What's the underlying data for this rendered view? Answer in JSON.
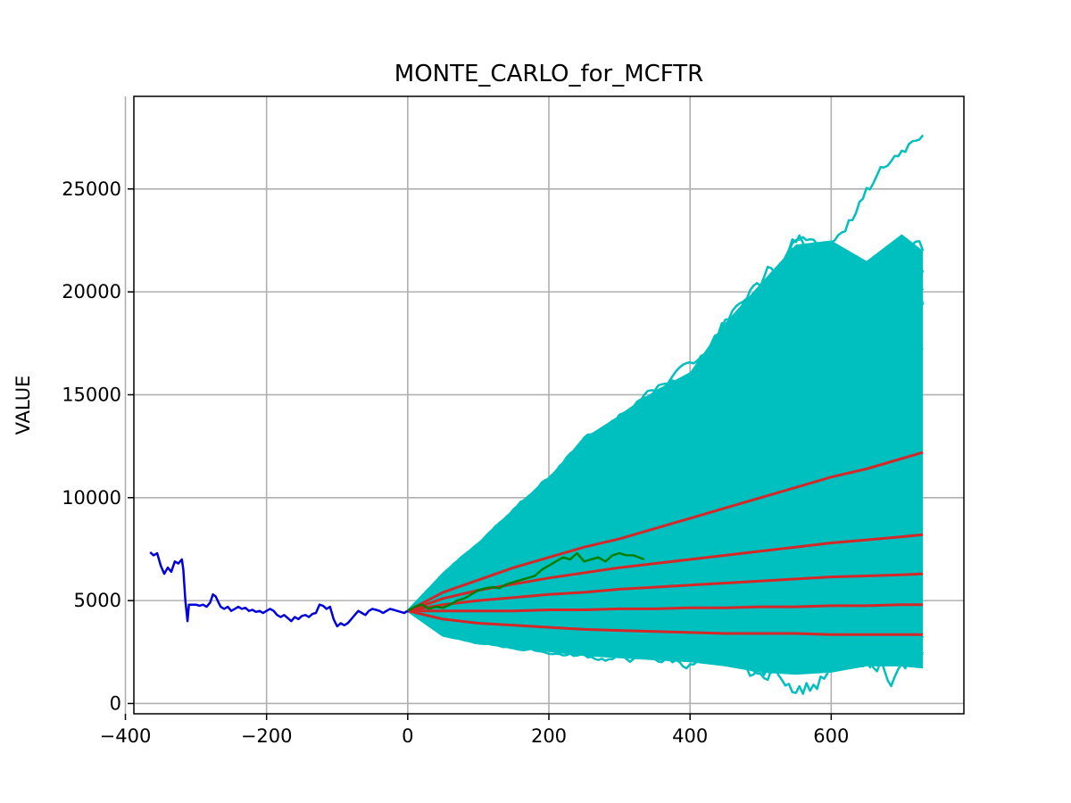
{
  "chart_data": {
    "type": "line",
    "title": "MONTE_CARLO_for_MCFTR",
    "xlabel": "",
    "ylabel": "VALUE",
    "xlim": [
      -388,
      788
    ],
    "ylim": [
      -500,
      29500
    ],
    "grid": true,
    "x_ticks": [
      -400,
      -200,
      0,
      200,
      400,
      600
    ],
    "y_ticks": [
      0,
      5000,
      10000,
      15000,
      20000,
      25000
    ],
    "colors": {
      "history": "#0000dd",
      "simulations": "#00bfbf",
      "percentiles": "#d62728",
      "realized": "#008000"
    },
    "series": [
      {
        "role": "history",
        "x": [
          -365,
          -360,
          -355,
          -350,
          -345,
          -340,
          -335,
          -330,
          -325,
          -320,
          -318,
          -315,
          -312,
          -310,
          -305,
          -300,
          -295,
          -290,
          -285,
          -280,
          -276,
          -272,
          -268,
          -265,
          -260,
          -255,
          -250,
          -245,
          -240,
          -235,
          -230,
          -225,
          -220,
          -215,
          -210,
          -205,
          -200,
          -195,
          -190,
          -185,
          -180,
          -175,
          -170,
          -165,
          -160,
          -155,
          -150,
          -145,
          -140,
          -135,
          -130,
          -125,
          -120,
          -115,
          -110,
          -105,
          -100,
          -95,
          -90,
          -85,
          -80,
          -75,
          -70,
          -65,
          -60,
          -55,
          -50,
          -45,
          -40,
          -35,
          -30,
          -25,
          -20,
          -15,
          -10,
          -5,
          0
        ],
        "values": [
          7350,
          7200,
          7300,
          6700,
          6300,
          6600,
          6400,
          6900,
          6800,
          7000,
          6500,
          5000,
          4000,
          4800,
          4800,
          4800,
          4750,
          4800,
          4700,
          4900,
          5300,
          5200,
          4900,
          4700,
          4600,
          4700,
          4500,
          4600,
          4700,
          4600,
          4650,
          4500,
          4550,
          4450,
          4500,
          4400,
          4500,
          4600,
          4500,
          4300,
          4200,
          4300,
          4150,
          4000,
          4200,
          4100,
          4250,
          4300,
          4200,
          4350,
          4400,
          4800,
          4750,
          4600,
          4700,
          4100,
          3750,
          3900,
          3800,
          3900,
          4100,
          4300,
          4500,
          4400,
          4300,
          4500,
          4600,
          4550,
          4500,
          4400,
          4500,
          4600,
          4550,
          4500,
          4450,
          4400,
          4500
        ]
      },
      {
        "role": "simulation-upper-envelope",
        "x": [
          0,
          50,
          100,
          150,
          200,
          250,
          300,
          350,
          400,
          450,
          500,
          550,
          600,
          650,
          700,
          730
        ],
        "values": [
          4500,
          6300,
          7800,
          9400,
          11000,
          12900,
          14000,
          15200,
          16100,
          18500,
          20400,
          22300,
          22500,
          21500,
          22800,
          22000
        ]
      },
      {
        "role": "simulation-lower-envelope",
        "x": [
          0,
          50,
          100,
          150,
          200,
          250,
          300,
          350,
          400,
          450,
          500,
          550,
          600,
          650,
          700,
          730
        ],
        "values": [
          4500,
          3300,
          2900,
          2700,
          2500,
          2300,
          2200,
          2100,
          2000,
          1800,
          1500,
          1400,
          1500,
          1800,
          1800,
          1700
        ]
      },
      {
        "role": "percentile",
        "x": [
          0,
          50,
          100,
          150,
          200,
          250,
          300,
          350,
          400,
          450,
          500,
          550,
          600,
          650,
          700,
          730
        ],
        "values": [
          4500,
          5400,
          6000,
          6600,
          7100,
          7600,
          8000,
          8500,
          9000,
          9500,
          10000,
          10500,
          11000,
          11400,
          11900,
          12200
        ]
      },
      {
        "role": "percentile",
        "x": [
          0,
          50,
          100,
          150,
          200,
          250,
          300,
          350,
          400,
          450,
          500,
          550,
          600,
          650,
          700,
          730
        ],
        "values": [
          4500,
          5100,
          5500,
          5800,
          6100,
          6350,
          6600,
          6800,
          7000,
          7200,
          7400,
          7600,
          7800,
          7950,
          8100,
          8200
        ]
      },
      {
        "role": "percentile",
        "x": [
          0,
          50,
          100,
          150,
          200,
          250,
          300,
          350,
          400,
          450,
          500,
          550,
          600,
          650,
          700,
          730
        ],
        "values": [
          4500,
          4800,
          5000,
          5150,
          5300,
          5400,
          5550,
          5650,
          5750,
          5850,
          5950,
          6050,
          6150,
          6200,
          6250,
          6300
        ]
      },
      {
        "role": "percentile",
        "x": [
          0,
          50,
          100,
          150,
          200,
          250,
          300,
          350,
          400,
          450,
          500,
          550,
          600,
          650,
          700,
          730
        ],
        "values": [
          4500,
          4500,
          4500,
          4500,
          4550,
          4550,
          4600,
          4600,
          4650,
          4650,
          4700,
          4700,
          4750,
          4750,
          4800,
          4800
        ]
      },
      {
        "role": "percentile",
        "x": [
          0,
          50,
          100,
          150,
          200,
          250,
          300,
          350,
          400,
          450,
          500,
          550,
          600,
          650,
          700,
          730
        ],
        "values": [
          4500,
          4100,
          3900,
          3800,
          3700,
          3600,
          3550,
          3500,
          3450,
          3400,
          3400,
          3400,
          3350,
          3350,
          3350,
          3350
        ]
      },
      {
        "role": "realized",
        "x": [
          0,
          10,
          20,
          30,
          40,
          50,
          60,
          70,
          80,
          90,
          100,
          110,
          120,
          130,
          140,
          150,
          160,
          170,
          180,
          190,
          200,
          210,
          220,
          230,
          240,
          250,
          260,
          270,
          280,
          290,
          300,
          310,
          320,
          335
        ],
        "values": [
          4500,
          4700,
          4800,
          4600,
          4700,
          4650,
          4800,
          5000,
          5100,
          5300,
          5500,
          5600,
          5650,
          5600,
          5800,
          5900,
          6000,
          6100,
          6200,
          6500,
          6700,
          6900,
          7100,
          7000,
          7300,
          6900,
          7000,
          7100,
          6900,
          7200,
          7300,
          7200,
          7200,
          7000
        ]
      }
    ]
  }
}
